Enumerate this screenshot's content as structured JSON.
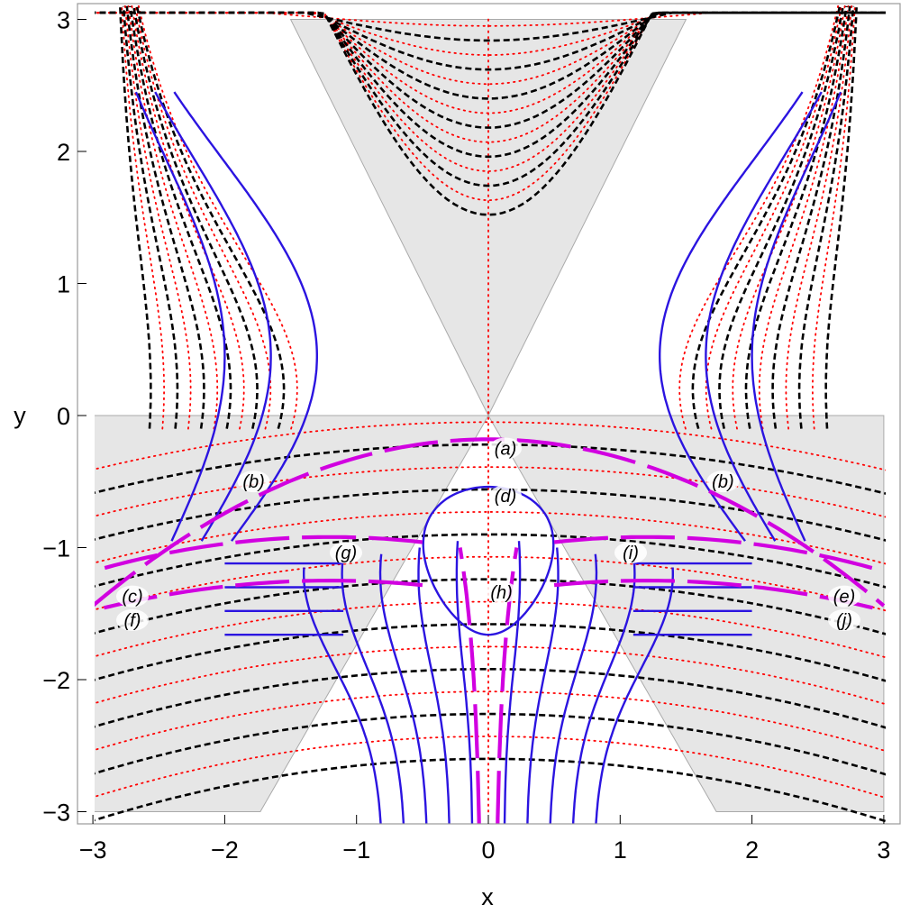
{
  "chart_data": {
    "type": "contour",
    "title": "",
    "xlabel": "x",
    "ylabel": "y",
    "xlim": [
      -3,
      3
    ],
    "ylim": [
      -3,
      3
    ],
    "x_ticks": [
      "−3",
      "−2",
      "−1",
      "0",
      "1",
      "2",
      "3"
    ],
    "y_ticks": [
      "3",
      "2",
      "1",
      "0",
      "−1",
      "−2",
      "−3"
    ],
    "shaded_regions": [
      {
        "name": "upper-wedge",
        "polygon": [
          [
            -1.5,
            3
          ],
          [
            1.5,
            3
          ],
          [
            0,
            0
          ]
        ],
        "color": "#e6e6e6"
      },
      {
        "name": "lower-wedge",
        "polygon": [
          [
            -3,
            0
          ],
          [
            3,
            0
          ],
          [
            3,
            -3
          ],
          [
            1.73,
            -3
          ],
          [
            0,
            0
          ],
          [
            -1.73,
            -3
          ],
          [
            -3,
            -3
          ]
        ],
        "color": "#e6e6e6"
      }
    ],
    "series": [
      {
        "style": "dotted",
        "color": "#ff0000"
      },
      {
        "style": "dashed",
        "color": "#000000"
      },
      {
        "style": "solid",
        "color": "#2b14e0"
      },
      {
        "style": "solid-thick",
        "color": "#d100e0"
      }
    ],
    "annotations": [
      {
        "text": "(a)",
        "x": 0.13,
        "y": -0.29
      },
      {
        "text": "(d)",
        "x": 0.13,
        "y": -0.65
      },
      {
        "text": "(h)",
        "x": 0.1,
        "y": -1.38
      },
      {
        "text": "(b)",
        "x": -1.78,
        "y": -0.54
      },
      {
        "text": "(b)",
        "x": 1.78,
        "y": -0.54
      },
      {
        "text": "(g)",
        "x": -1.08,
        "y": -1.08
      },
      {
        "text": "(i)",
        "x": 1.08,
        "y": -1.08
      },
      {
        "text": "(c)",
        "x": -2.7,
        "y": -1.41
      },
      {
        "text": "(f)",
        "x": -2.7,
        "y": -1.59
      },
      {
        "text": "(e)",
        "x": 2.7,
        "y": -1.41
      },
      {
        "text": "(j)",
        "x": 2.7,
        "y": -1.59
      }
    ]
  }
}
